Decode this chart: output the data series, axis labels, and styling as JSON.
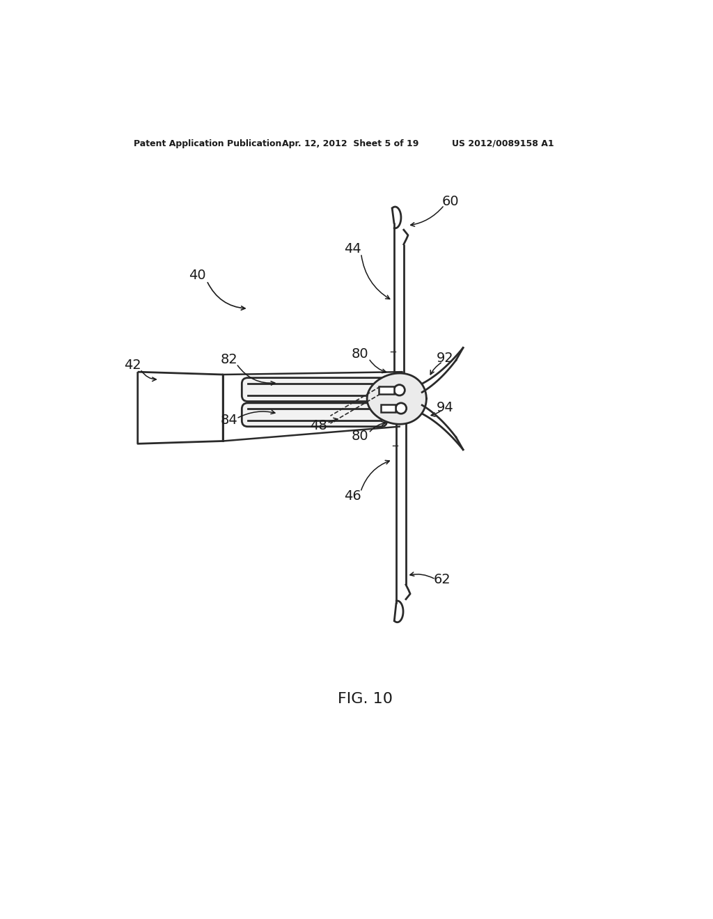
{
  "bg_color": "#ffffff",
  "header_left": "Patent Application Publication",
  "header_mid": "Apr. 12, 2012  Sheet 5 of 19",
  "header_right": "US 2012/0089158 A1",
  "fig_label": "FIG. 10",
  "line_color": "#2a2a2a",
  "line_width": 2.0,
  "text_color": "#1a1a1a",
  "text_fontsize": 14,
  "header_fontsize": 9
}
